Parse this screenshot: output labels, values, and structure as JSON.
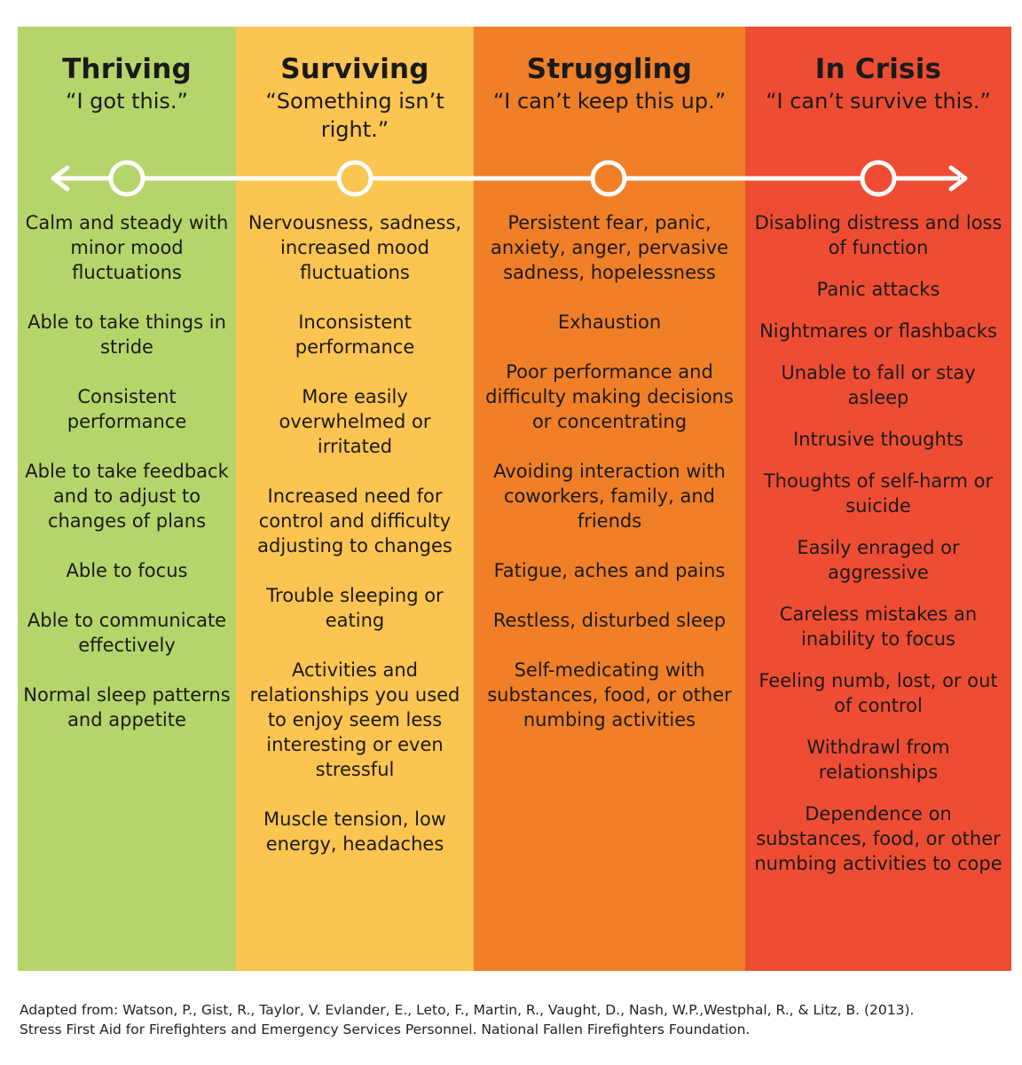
{
  "columns": [
    {
      "id": "thriving",
      "title": "Thriving",
      "quote": "“I got this.”",
      "color": "#b5d56a",
      "items": [
        "Calm and steady with minor mood fluctuations",
        "Able to take things in stride",
        "Consistent performance",
        "Able to take feedback and to adjust to changes of plans",
        "Able to focus",
        "Able to communicate effectively",
        "Normal sleep patterns and appetite"
      ]
    },
    {
      "id": "surviving",
      "title": "Surviving",
      "quote": "“Something isn’t right.”",
      "color": "#fcc450",
      "items": [
        "Nervousness, sadness, increased mood fluctuations",
        "Inconsistent performance",
        "More easily overwhelmed or irritated",
        "Increased need for control and difficulty adjusting to changes",
        "Trouble sleeping or eating",
        "Activities and relationships you used to enjoy seem less interesting or even stressful",
        "Muscle tension, low energy, headaches"
      ]
    },
    {
      "id": "struggling",
      "title": "Struggling",
      "quote": "“I can’t keep this up.”",
      "color": "#f07f27",
      "items": [
        "Persistent fear, panic, anxiety, anger, pervasive sadness, hopelessness",
        "Exhaustion",
        "Poor performance and difficulty making decisions or concentrating",
        "Avoiding interaction with coworkers, family, and friends",
        "Fatigue, aches and pains",
        "Restless, disturbed sleep",
        "Self-medicating with substances, food, or other numbing activities"
      ]
    },
    {
      "id": "crisis",
      "title": "In Crisis",
      "quote": "“I can’t survive this.”",
      "color": "#ef4d33",
      "items": [
        "Disabling distress and loss of function",
        "Panic attacks",
        "Nightmares or flashbacks",
        "Unable to fall or stay asleep",
        "Intrusive thoughts",
        "Thoughts of self-harm or suicide",
        "Easily enraged or aggressive",
        "Careless mistakes an inability to focus",
        "Feeling numb, lost, or out of control",
        "Withdrawl from relationships",
        "Dependence on substances, food, or other numbing activities to cope"
      ]
    }
  ],
  "footer": {
    "line1": "Adapted from: Watson, P., Gist, R., Taylor, V. Evlander, E., Leto, F., Martin, R., Vaught, D., Nash, W.P.,Westphal, R., & Litz, B. (2013).",
    "line2": "Stress First Aid for Firefighters and Emergency Services Personnel. National Fallen Firefighters Foundation."
  }
}
